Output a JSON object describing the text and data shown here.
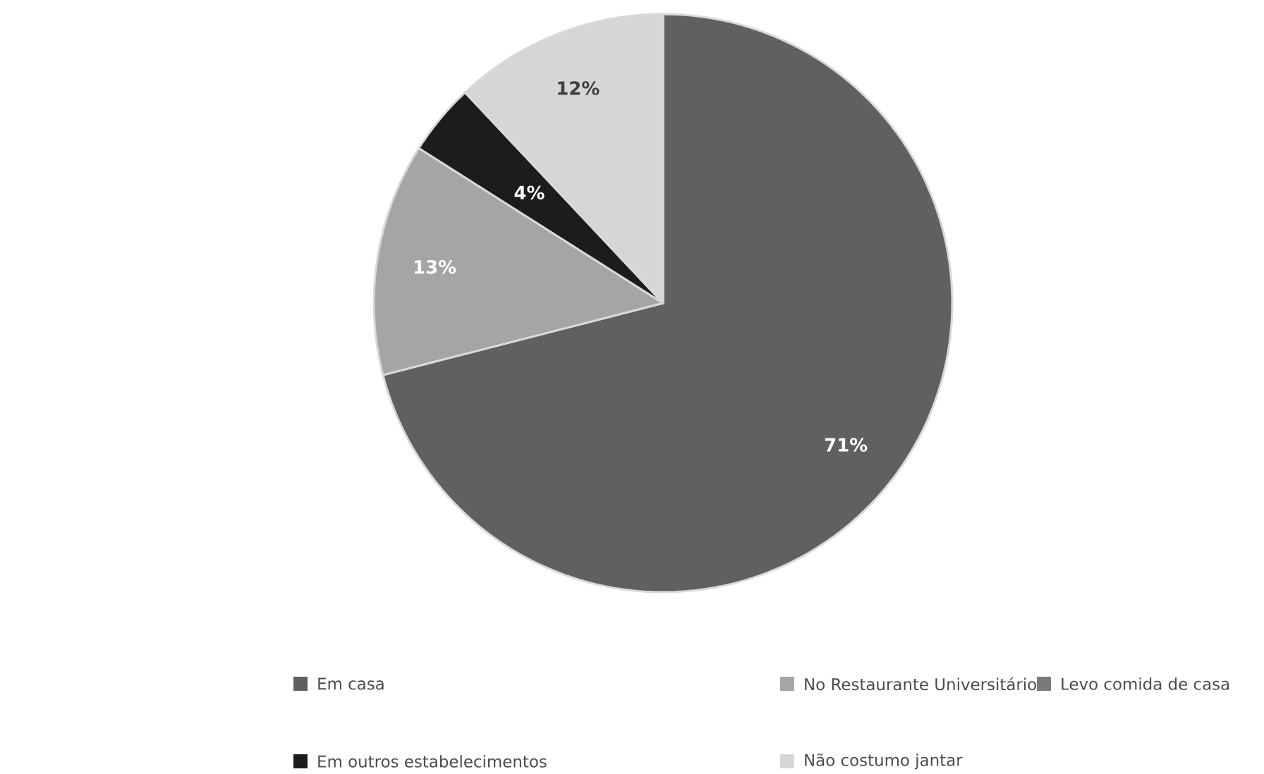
{
  "chart_data": {
    "type": "pie",
    "categories": [
      "Em casa",
      "No Restaurante Universitário",
      "Levo comida de casa",
      "Em outros estabelecimentos",
      "Não costumo jantar"
    ],
    "values": [
      71,
      13,
      0,
      4,
      12
    ],
    "value_labels": [
      "71%",
      "13%",
      null,
      "4%",
      "12%"
    ],
    "colors": [
      "#606060",
      "#a5a5a5",
      "#7a7a7a",
      "#1c1c1c",
      "#d6d6d6"
    ],
    "legend": "bottom"
  }
}
